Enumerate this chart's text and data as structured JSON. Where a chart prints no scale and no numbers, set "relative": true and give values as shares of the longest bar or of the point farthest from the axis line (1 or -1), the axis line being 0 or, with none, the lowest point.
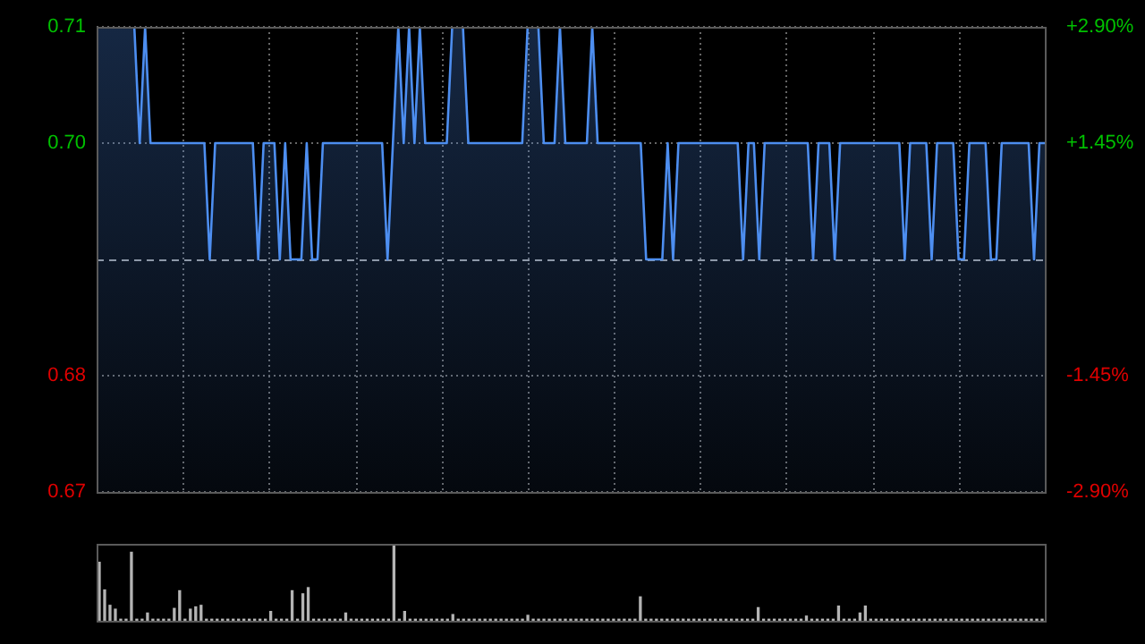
{
  "chart_data": [
    {
      "type": "area",
      "color": "#4d8ef0",
      "marker": "none",
      "line_style": "solid",
      "grid": true,
      "legend": false,
      "tick_labels": "y",
      "categories": [
        null,
        null,
        null,
        null,
        null,
        null,
        null,
        null,
        null,
        null,
        null,
        null,
        null,
        null,
        null,
        null,
        null,
        null,
        null,
        null,
        null,
        null,
        null,
        null,
        null,
        null,
        null,
        null,
        null,
        null,
        null,
        null,
        null,
        null,
        null,
        null,
        null,
        null,
        null,
        null,
        null,
        null,
        null,
        null,
        null,
        null,
        null,
        null,
        null,
        null,
        null,
        null,
        null,
        null,
        null,
        null,
        null,
        null,
        null,
        null,
        null,
        null,
        null,
        null,
        null,
        null,
        null,
        null,
        null,
        null,
        null,
        null,
        null,
        null,
        null,
        null,
        null,
        null,
        null,
        null,
        null,
        null,
        null,
        null,
        null,
        null,
        null,
        null,
        null,
        null,
        null,
        null,
        null,
        null,
        null,
        null,
        null,
        null,
        null,
        null,
        null,
        null,
        null,
        null,
        null,
        null,
        null,
        null,
        null,
        null,
        null,
        null,
        null,
        null,
        null,
        null,
        null,
        null,
        null,
        null,
        null,
        null,
        null,
        null,
        null,
        null,
        null,
        null,
        null,
        null,
        null,
        null,
        null,
        null,
        null,
        null,
        null,
        null,
        null,
        null,
        null,
        null,
        null,
        null,
        null,
        null,
        null,
        null,
        null,
        null,
        null,
        null,
        null,
        null,
        null,
        null,
        null,
        null,
        null,
        null,
        null,
        null,
        null,
        null,
        null,
        null,
        null,
        null,
        null,
        null,
        null,
        null,
        null,
        null,
        null,
        null,
        null
      ],
      "values": [
        0.71,
        0.71,
        0.71,
        0.71,
        0.71,
        0.71,
        0.71,
        0.71,
        0.7,
        0.71,
        0.7,
        0.7,
        0.7,
        0.7,
        0.7,
        0.7,
        0.7,
        0.7,
        0.7,
        0.7,
        0.7,
        0.69,
        0.7,
        0.7,
        0.7,
        0.7,
        0.7,
        0.7,
        0.7,
        0.7,
        0.69,
        0.7,
        0.7,
        0.7,
        0.69,
        0.7,
        0.69,
        0.69,
        0.69,
        0.7,
        0.69,
        0.69,
        0.7,
        0.7,
        0.7,
        0.7,
        0.7,
        0.7,
        0.7,
        0.7,
        0.7,
        0.7,
        0.7,
        0.7,
        0.69,
        0.7,
        0.71,
        0.7,
        0.71,
        0.7,
        0.71,
        0.7,
        0.7,
        0.7,
        0.7,
        0.7,
        0.71,
        0.71,
        0.71,
        0.7,
        0.7,
        0.7,
        0.7,
        0.7,
        0.7,
        0.7,
        0.7,
        0.7,
        0.7,
        0.7,
        0.71,
        0.71,
        0.71,
        0.7,
        0.7,
        0.7,
        0.71,
        0.7,
        0.7,
        0.7,
        0.7,
        0.7,
        0.71,
        0.7,
        0.7,
        0.7,
        0.7,
        0.7,
        0.7,
        0.7,
        0.7,
        0.7,
        0.69,
        0.69,
        0.69,
        0.69,
        0.7,
        0.69,
        0.7,
        0.7,
        0.7,
        0.7,
        0.7,
        0.7,
        0.7,
        0.7,
        0.7,
        0.7,
        0.7,
        0.7,
        0.69,
        0.7,
        0.7,
        0.69,
        0.7,
        0.7,
        0.7,
        0.7,
        0.7,
        0.7,
        0.7,
        0.7,
        0.7,
        0.69,
        0.7,
        0.7,
        0.7,
        0.69,
        0.7,
        0.7,
        0.7,
        0.7,
        0.7,
        0.7,
        0.7,
        0.7,
        0.7,
        0.7,
        0.7,
        0.7,
        0.69,
        0.7,
        0.7,
        0.7,
        0.7,
        0.69,
        0.7,
        0.7,
        0.7,
        0.7,
        0.69,
        0.69,
        0.7,
        0.7,
        0.7,
        0.7,
        0.69,
        0.69,
        0.7,
        0.7,
        0.7,
        0.7,
        0.7,
        0.7,
        0.69,
        0.7,
        0.7
      ],
      "ylim": [
        0.67,
        0.71
      ],
      "yticks": [
        0.71,
        {
          "value": 0.7,
          "label": "0.70"
        },
        0.68,
        0.67
      ],
      "y2lim": [
        -2.9,
        2.9
      ],
      "y2ticks": [
        {
          "value": 2.9,
          "label": "+2.90%"
        },
        {
          "value": 1.45,
          "label": "+1.45%"
        },
        {
          "value": -1.45,
          "label": "-1.45%"
        },
        {
          "value": -2.9,
          "label": "-2.90%"
        }
      ],
      "ref_lines": [
        {
          "axis": "y",
          "value": 0.69,
          "color": "#9a9a9a",
          "line_style": "dashed"
        }
      ]
    },
    {
      "type": "bar",
      "relative": true,
      "color": "#b4b4b4",
      "legend": false,
      "tick_labels": false,
      "categories": [
        null,
        null,
        null,
        null,
        null,
        null,
        null,
        null,
        null,
        null,
        null,
        null,
        null,
        null,
        null,
        null,
        null,
        null,
        null,
        null,
        null,
        null,
        null,
        null,
        null,
        null,
        null,
        null,
        null,
        null,
        null,
        null,
        null,
        null,
        null,
        null,
        null,
        null,
        null,
        null,
        null,
        null,
        null,
        null,
        null,
        null,
        null,
        null,
        null,
        null,
        null,
        null,
        null,
        null,
        null,
        null,
        null,
        null,
        null,
        null,
        null,
        null,
        null,
        null,
        null,
        null,
        null,
        null,
        null,
        null,
        null,
        null,
        null,
        null,
        null,
        null,
        null,
        null,
        null,
        null,
        null,
        null,
        null,
        null,
        null,
        null,
        null,
        null,
        null,
        null,
        null,
        null,
        null,
        null,
        null,
        null,
        null,
        null,
        null,
        null,
        null,
        null,
        null,
        null,
        null,
        null,
        null,
        null,
        null,
        null,
        null,
        null,
        null,
        null,
        null,
        null,
        null,
        null,
        null,
        null,
        null,
        null,
        null,
        null,
        null,
        null,
        null,
        null,
        null,
        null,
        null,
        null,
        null,
        null,
        null,
        null,
        null,
        null,
        null,
        null,
        null,
        null,
        null,
        null,
        null,
        null,
        null,
        null,
        null,
        null,
        null,
        null,
        null,
        null,
        null,
        null,
        null,
        null,
        null,
        null,
        null,
        null,
        null,
        null,
        null,
        null,
        null,
        null,
        null,
        null,
        null,
        null,
        null,
        null,
        null,
        null,
        null
      ],
      "values": [
        0.76,
        0.4,
        0.2,
        0.15,
        0.02,
        0.02,
        0.89,
        0.02,
        0.02,
        0.1,
        0.02,
        0.02,
        0.02,
        0.02,
        0.16,
        0.39,
        0.02,
        0.15,
        0.18,
        0.2,
        0.02,
        0.02,
        0.02,
        0.02,
        0.02,
        0.02,
        0.02,
        0.02,
        0.02,
        0.02,
        0.02,
        0.02,
        0.12,
        0.02,
        0.02,
        0.02,
        0.39,
        0.02,
        0.35,
        0.43,
        0.02,
        0.02,
        0.02,
        0.02,
        0.02,
        0.02,
        0.1,
        0.02,
        0.02,
        0.02,
        0.02,
        0.02,
        0.02,
        0.02,
        0.02,
        1,
        0.02,
        0.12,
        0.02,
        0.02,
        0.02,
        0.02,
        0.02,
        0.02,
        0.02,
        0.02,
        0.08,
        0.02,
        0.02,
        0.02,
        0.02,
        0.02,
        0.02,
        0.02,
        0.02,
        0.02,
        0.02,
        0.02,
        0.02,
        0.02,
        0.07,
        0.02,
        0.02,
        0.02,
        0.02,
        0.02,
        0.02,
        0.02,
        0.02,
        0.02,
        0.02,
        0.02,
        0.02,
        0.02,
        0.02,
        0.02,
        0.02,
        0.02,
        0.02,
        0.02,
        0.02,
        0.31,
        0.02,
        0.02,
        0.02,
        0.02,
        0.02,
        0.02,
        0.02,
        0.02,
        0.02,
        0.02,
        0.02,
        0.02,
        0.02,
        0.02,
        0.02,
        0.02,
        0.02,
        0.02,
        0.02,
        0.02,
        0.02,
        0.17,
        0.02,
        0.02,
        0.02,
        0.02,
        0.02,
        0.02,
        0.02,
        0.02,
        0.06,
        0.02,
        0.02,
        0.02,
        0.02,
        0.02,
        0.19,
        0.02,
        0.02,
        0.02,
        0.1,
        0.19,
        0.02,
        0.02,
        0.02,
        0.02,
        0.02,
        0.02,
        0.02,
        0.02,
        0.02,
        0.02,
        0.02,
        0.02,
        0.02,
        0.02,
        0.02,
        0.02,
        0.02,
        0.02,
        0.02,
        0.02,
        0.02,
        0.02,
        0.02,
        0.02,
        0.02,
        0.02,
        0.02,
        0.02,
        0.02,
        0.02,
        0.02,
        0.02,
        0.02
      ]
    }
  ]
}
